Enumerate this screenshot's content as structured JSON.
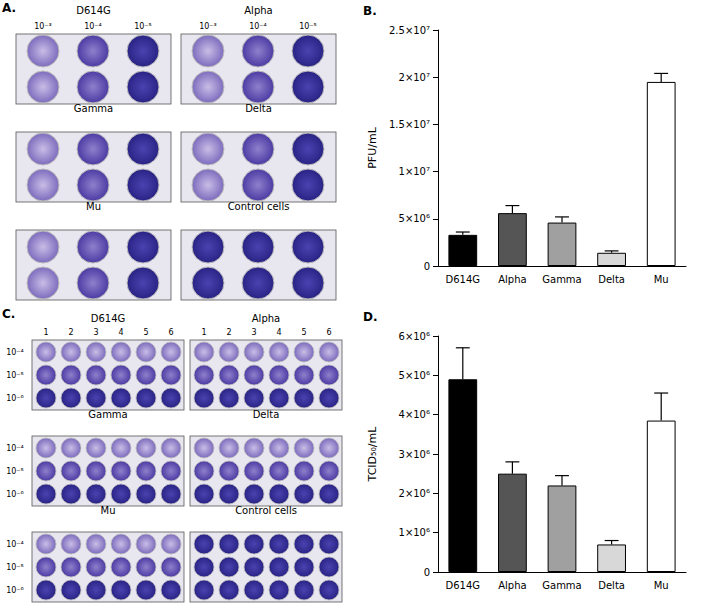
{
  "panel_A": {
    "label": "A.",
    "dilutions": [
      "10⁻³",
      "10⁻⁴",
      "10⁻⁵"
    ],
    "groups": [
      "D614G",
      "Alpha",
      "Gamma",
      "Delta",
      "Mu",
      "Control cells"
    ]
  },
  "panel_C": {
    "label": "C.",
    "columns": [
      "1",
      "2",
      "3",
      "4",
      "5",
      "6"
    ],
    "dilutions": [
      "10⁻⁴",
      "10⁻⁵",
      "10⁻⁶"
    ],
    "groups": [
      "D614G",
      "Alpha",
      "Gamma",
      "Delta",
      "Mu",
      "Control cells"
    ]
  },
  "chart_data": [
    {
      "type": "bar",
      "title": "B.",
      "y_label": "PFU/mL",
      "categories": [
        "D614G",
        "Alpha",
        "Gamma",
        "Delta",
        "Mu"
      ],
      "values": [
        3300000,
        5600000,
        4600000,
        1400000,
        19500000
      ],
      "errors": [
        300000,
        800000,
        600000,
        200000,
        900000
      ],
      "colors": [
        "#000000",
        "#555555",
        "#a0a0a0",
        "#d8d8d8",
        "#ffffff"
      ],
      "ylim": [
        0,
        25000000
      ],
      "yticks": [
        0,
        {
          "value": 5000000,
          "label": "5×10⁶"
        },
        {
          "value": 10000000,
          "label": "1×10⁷"
        },
        {
          "value": 15000000,
          "label": "1.5×10⁷"
        },
        {
          "value": 20000000,
          "label": "2×10⁷"
        },
        {
          "value": 25000000,
          "label": "2.5×10⁷"
        }
      ],
      "grid": false
    },
    {
      "type": "bar",
      "title": "D.",
      "y_label": "TCID₅₀/mL",
      "categories": [
        "D614G",
        "Alpha",
        "Gamma",
        "Delta",
        "Mu"
      ],
      "values": [
        4900000,
        2500000,
        2200000,
        700000,
        3850000
      ],
      "errors": [
        800000,
        300000,
        250000,
        100000,
        700000
      ],
      "colors": [
        "#000000",
        "#555555",
        "#a0a0a0",
        "#d8d8d8",
        "#ffffff"
      ],
      "ylim": [
        0,
        6000000
      ],
      "yticks": [
        0,
        {
          "value": 1000000,
          "label": "1×10⁶"
        },
        {
          "value": 2000000,
          "label": "2×10⁶"
        },
        {
          "value": 3000000,
          "label": "3×10⁶"
        },
        {
          "value": 4000000,
          "label": "4×10⁶"
        },
        {
          "value": 5000000,
          "label": "5×10⁶"
        },
        {
          "value": 6000000,
          "label": "6×10⁶"
        }
      ],
      "grid": false
    }
  ]
}
